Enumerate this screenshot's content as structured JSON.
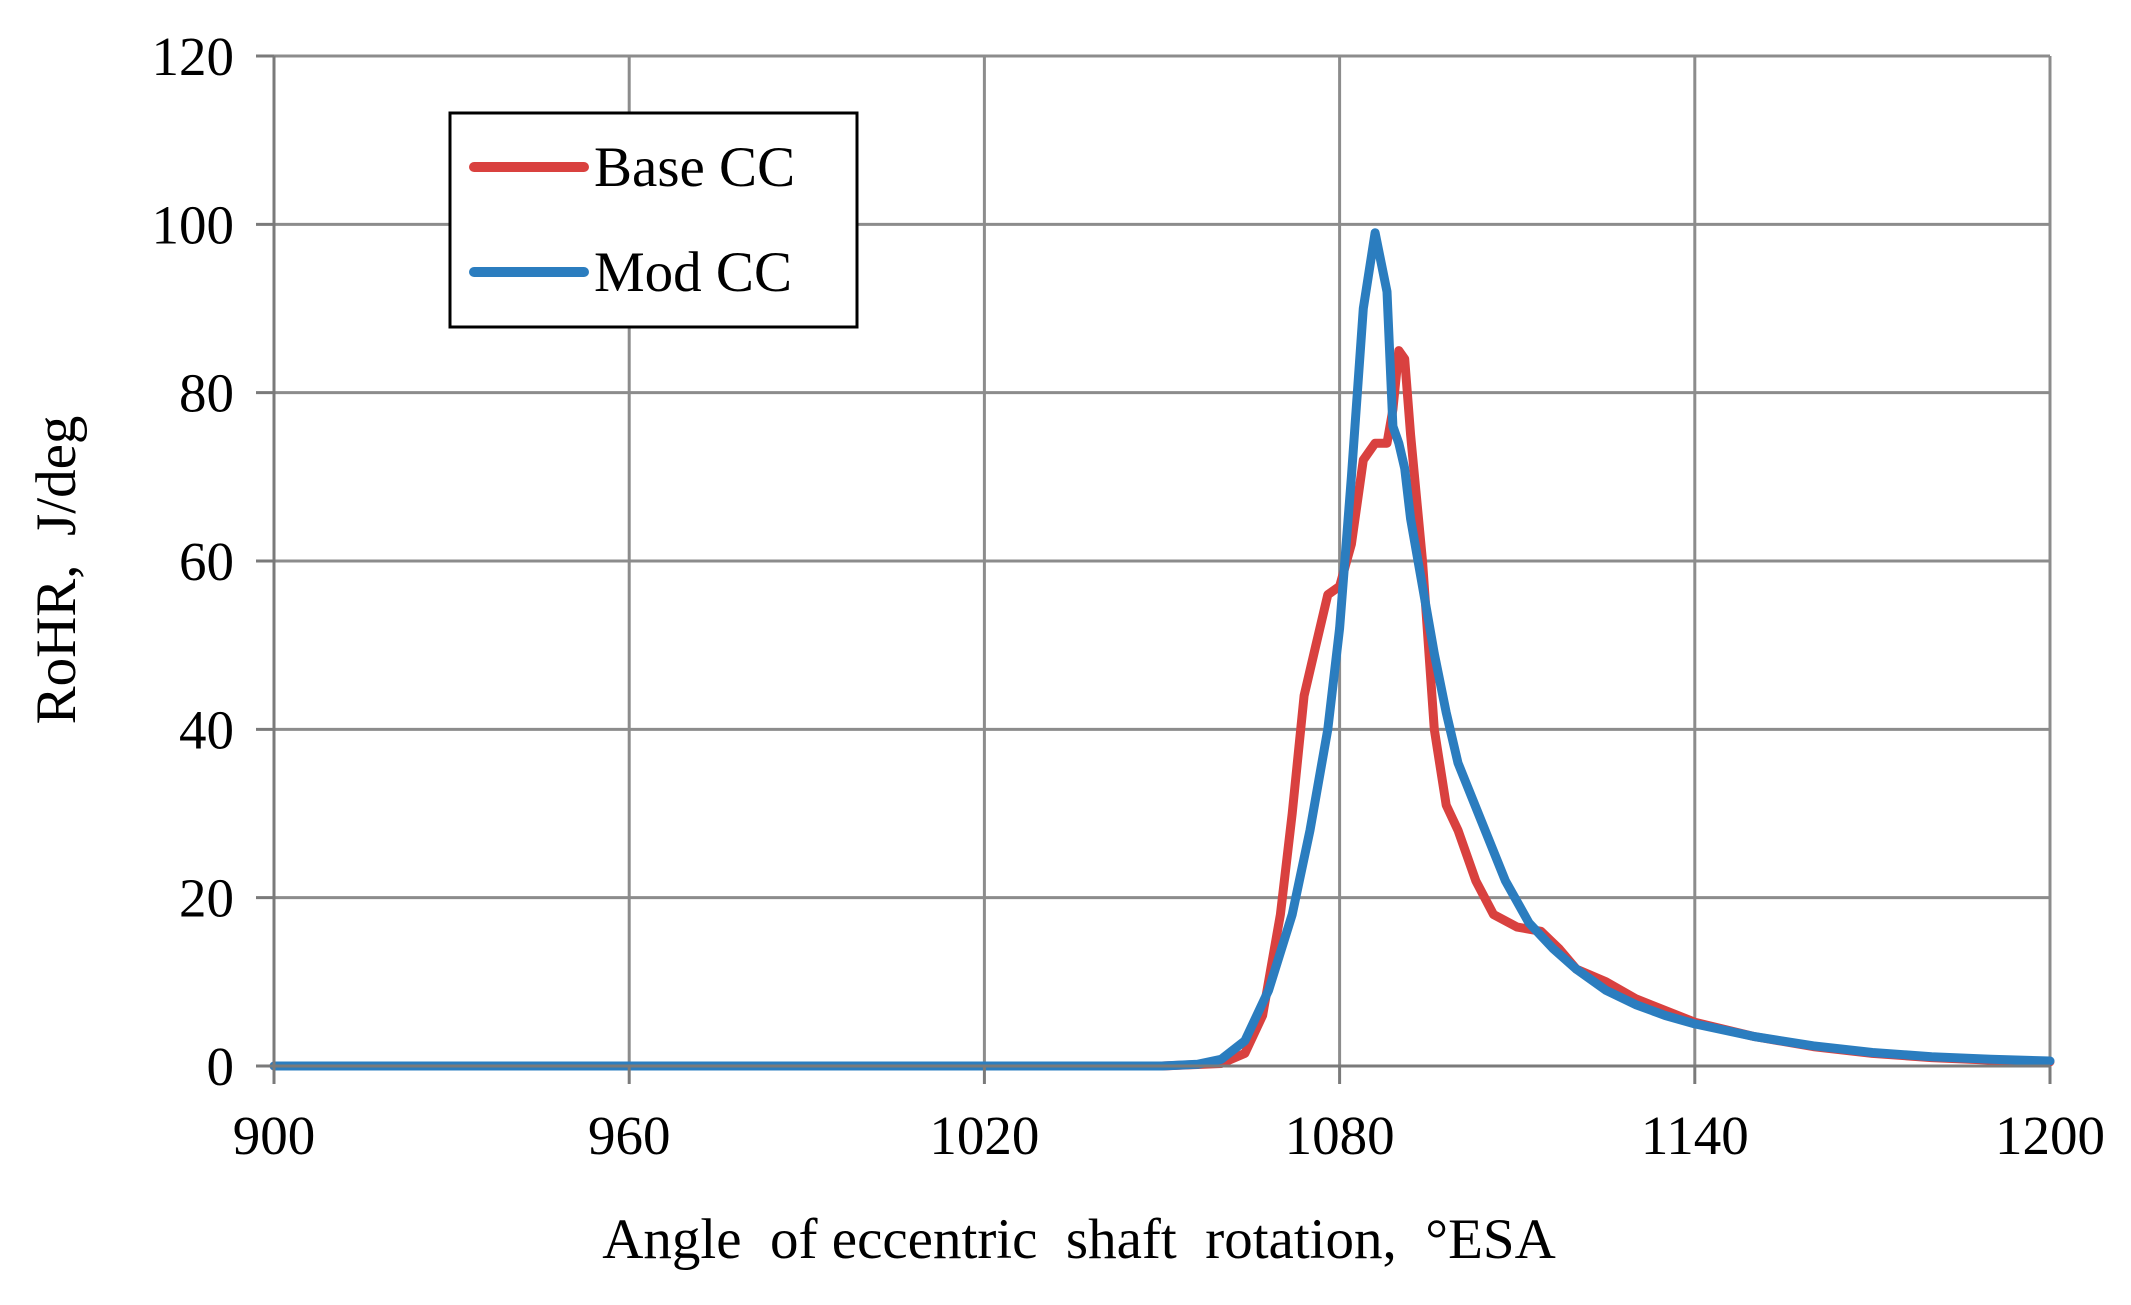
{
  "chart_data": {
    "type": "line",
    "title": "",
    "xlabel": "Angle  of eccentric  shaft  rotation,  °ESA",
    "ylabel": "RoHR,  J/deg",
    "xlim": [
      900,
      1200
    ],
    "ylim": [
      0,
      120
    ],
    "x_ticks": [
      900,
      960,
      1020,
      1080,
      1140,
      1200
    ],
    "y_ticks": [
      0,
      20,
      40,
      60,
      80,
      100,
      120
    ],
    "x_tick_labels": [
      "900",
      "960",
      "1020",
      "1080",
      "1140",
      "1200"
    ],
    "y_tick_labels": [
      "0",
      "20",
      "40",
      "60",
      "80",
      "100",
      "120"
    ],
    "grid": true,
    "legend_position": "top-left",
    "series": [
      {
        "name": "Base CC",
        "color": "#d9413f",
        "points": [
          [
            900,
            0
          ],
          [
            1050,
            0
          ],
          [
            1060,
            0.3
          ],
          [
            1064,
            1.5
          ],
          [
            1067,
            6
          ],
          [
            1070,
            18
          ],
          [
            1072,
            30
          ],
          [
            1074,
            44
          ],
          [
            1076,
            50
          ],
          [
            1078,
            56
          ],
          [
            1080,
            57
          ],
          [
            1082,
            62
          ],
          [
            1084,
            72
          ],
          [
            1086,
            74
          ],
          [
            1088,
            74
          ],
          [
            1089,
            78
          ],
          [
            1090,
            85
          ],
          [
            1091,
            84
          ],
          [
            1092,
            75
          ],
          [
            1094,
            60
          ],
          [
            1096,
            40
          ],
          [
            1098,
            31
          ],
          [
            1100,
            28
          ],
          [
            1103,
            22
          ],
          [
            1106,
            18
          ],
          [
            1110,
            16.5
          ],
          [
            1114,
            16
          ],
          [
            1117,
            14
          ],
          [
            1120,
            11.5
          ],
          [
            1125,
            10
          ],
          [
            1130,
            8
          ],
          [
            1140,
            5.2
          ],
          [
            1150,
            3.5
          ],
          [
            1160,
            2.3
          ],
          [
            1170,
            1.5
          ],
          [
            1180,
            1.0
          ],
          [
            1190,
            0.7
          ],
          [
            1200,
            0.5
          ]
        ]
      },
      {
        "name": "Mod CC",
        "color": "#2b7dbf",
        "points": [
          [
            900,
            0
          ],
          [
            1050,
            0
          ],
          [
            1056,
            0.2
          ],
          [
            1060,
            0.8
          ],
          [
            1064,
            3
          ],
          [
            1068,
            9
          ],
          [
            1072,
            18
          ],
          [
            1075,
            28
          ],
          [
            1078,
            40
          ],
          [
            1080,
            52
          ],
          [
            1082,
            70
          ],
          [
            1084,
            90
          ],
          [
            1086,
            99
          ],
          [
            1088,
            92
          ],
          [
            1089,
            76
          ],
          [
            1090,
            74
          ],
          [
            1091,
            71
          ],
          [
            1092,
            65
          ],
          [
            1094,
            57
          ],
          [
            1096,
            49
          ],
          [
            1098,
            42
          ],
          [
            1100,
            36
          ],
          [
            1104,
            29
          ],
          [
            1108,
            22
          ],
          [
            1112,
            17
          ],
          [
            1116,
            14
          ],
          [
            1120,
            11.5
          ],
          [
            1125,
            9
          ],
          [
            1130,
            7.3
          ],
          [
            1135,
            6.0
          ],
          [
            1140,
            5.0
          ],
          [
            1150,
            3.5
          ],
          [
            1160,
            2.4
          ],
          [
            1170,
            1.6
          ],
          [
            1180,
            1.1
          ],
          [
            1190,
            0.8
          ],
          [
            1200,
            0.6
          ]
        ]
      }
    ]
  }
}
